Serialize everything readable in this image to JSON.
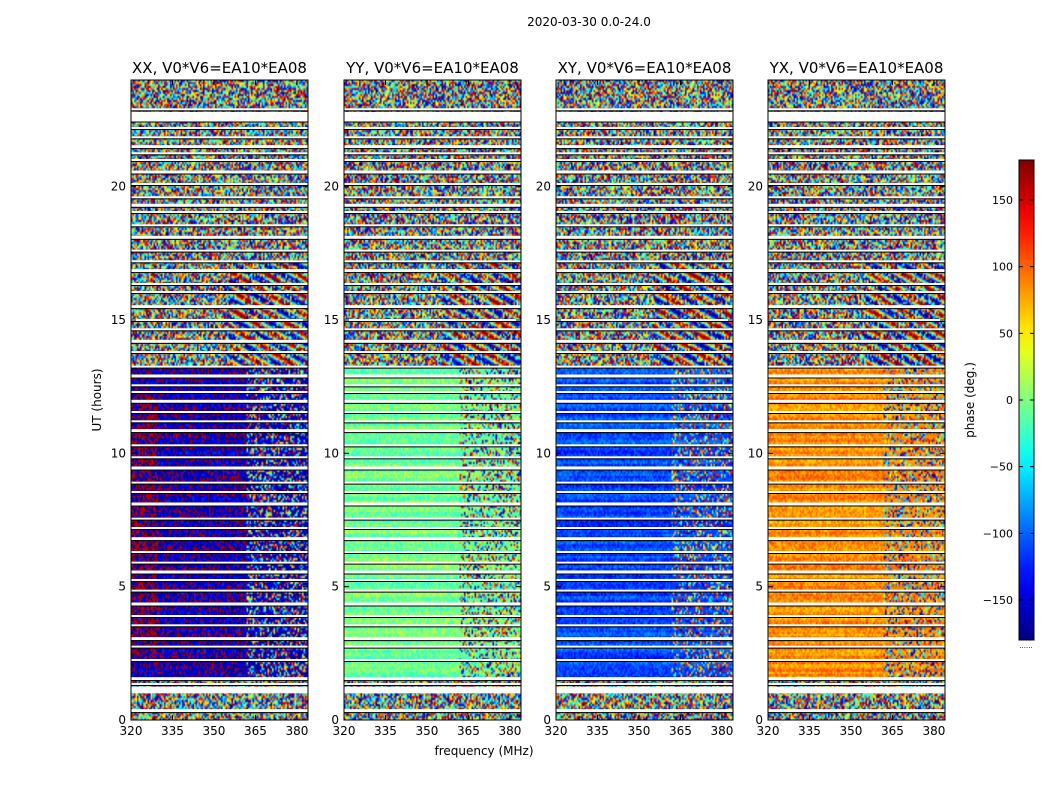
{
  "figure_title": "2020-03-30 0.0-24.0",
  "xlabel": "frequency (MHz)",
  "ylabel": "UT (hours)",
  "colorbar_label": "phase (deg.)",
  "colorbar_footer": "......",
  "chart_data": {
    "type": "heatmap",
    "title": "2020-03-30 0.0-24.0",
    "xlabel": "frequency (MHz)",
    "ylabel": "UT (hours)",
    "xlim": [
      320,
      384
    ],
    "ylim": [
      0,
      24
    ],
    "xticks": [
      320,
      335,
      350,
      365,
      380
    ],
    "yticks": [
      0,
      5,
      10,
      15,
      20
    ],
    "colorbar": {
      "label": "phase (deg.)",
      "range": [
        -180,
        180
      ],
      "ticks": [
        150,
        100,
        50,
        0,
        -50,
        -100,
        -150
      ],
      "tick_labels": [
        "150",
        "100",
        "50",
        "0",
        "−50",
        "−100",
        "−150"
      ],
      "colormap": "jet"
    },
    "panels": [
      {
        "title": "XX, V0*V6=EA10*EA08",
        "low_freq_phase_deg": -160,
        "coherent_start_hour": 1.5,
        "coherent_end_hour": 13.2,
        "transition_freq_mhz": 362
      },
      {
        "title": "YY, V0*V6=EA10*EA08",
        "low_freq_phase_deg": -5,
        "coherent_start_hour": 1.5,
        "coherent_end_hour": 13.2,
        "transition_freq_mhz": 362
      },
      {
        "title": "XY, V0*V6=EA10*EA08",
        "low_freq_phase_deg": -110,
        "coherent_start_hour": 1.5,
        "coherent_end_hour": 13.2,
        "transition_freq_mhz": 362
      },
      {
        "title": "YX, V0*V6=EA10*EA08",
        "low_freq_phase_deg": 85,
        "coherent_start_hour": 1.5,
        "coherent_end_hour": 13.2,
        "transition_freq_mhz": 362
      }
    ],
    "flagged_hours": [
      0.35,
      1.2,
      1.35,
      1.55,
      2.25,
      2.75,
      3.05,
      3.55,
      3.9,
      4.35,
      4.85,
      5.25,
      5.55,
      5.9,
      6.3,
      6.8,
      7.2,
      7.55,
      8.1,
      8.55,
      8.9,
      9.45,
      9.85,
      10.3,
      10.85,
      11.2,
      11.55,
      11.95,
      12.3,
      12.55,
      12.9,
      13.25,
      13.8,
      14.2,
      14.65,
      15.0,
      15.5,
      16.05,
      16.35,
      16.85,
      17.2,
      17.6,
      18.1,
      18.55,
      19.05,
      19.3,
      19.6,
      20.1,
      20.55,
      21.0,
      21.25,
      21.5,
      21.85,
      22.2,
      22.5,
      22.9
    ]
  }
}
